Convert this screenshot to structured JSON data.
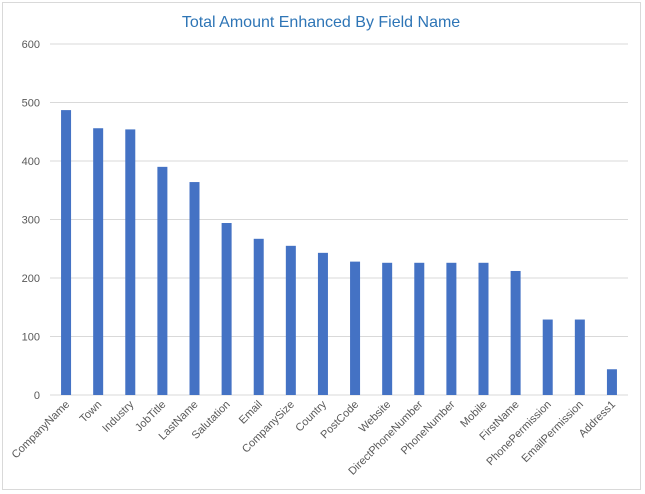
{
  "chart_data": {
    "type": "bar",
    "title": "Total Amount Enhanced By Field Name",
    "xlabel": "",
    "ylabel": "",
    "ylim": [
      0,
      600
    ],
    "yticks": [
      0,
      100,
      200,
      300,
      400,
      500,
      600
    ],
    "grid": true,
    "legend": "none",
    "bar_color": "#4472c4",
    "title_color": "#2e75b6",
    "categories": [
      "CompanyName",
      "Town",
      "Industry",
      "JobTitle",
      "LastName",
      "Salutation",
      "Email",
      "CompanySize",
      "Country",
      "PostCode",
      "Website",
      "DirectPhoneNumber",
      "PhoneNumber",
      "Mobile",
      "FirstName",
      "PhonePermission",
      "EmailPermission",
      "Address1"
    ],
    "values": [
      487,
      456,
      454,
      390,
      364,
      294,
      267,
      255,
      243,
      228,
      226,
      226,
      226,
      226,
      212,
      129,
      129,
      44
    ]
  }
}
